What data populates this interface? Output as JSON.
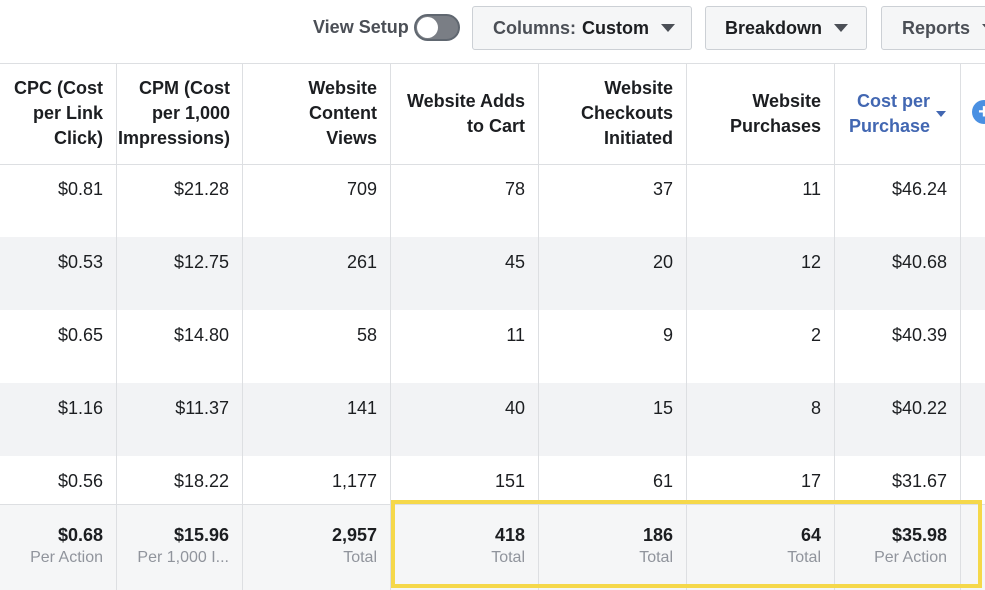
{
  "toolbar": {
    "view_setup_label": "View Setup",
    "columns_label": "Columns:",
    "columns_value": "Custom",
    "breakdown_label": "Breakdown",
    "reports_label": "Reports"
  },
  "table": {
    "headers": [
      "CPC (Cost\nper Link\nClick)",
      "CPM (Cost\nper 1,000\nImpressions)",
      "Website\nContent\nViews",
      "Website Adds\nto Cart",
      "Website\nCheckouts\nInitiated",
      "Website\nPurchases",
      "Cost per\nPurchase"
    ],
    "rows": [
      [
        "$0.81",
        "$21.28",
        "709",
        "78",
        "37",
        "11",
        "$46.24"
      ],
      [
        "$0.53",
        "$12.75",
        "261",
        "45",
        "20",
        "12",
        "$40.68"
      ],
      [
        "$0.65",
        "$14.80",
        "58",
        "11",
        "9",
        "2",
        "$40.39"
      ],
      [
        "$1.16",
        "$11.37",
        "141",
        "40",
        "15",
        "8",
        "$40.22"
      ],
      [
        "$0.56",
        "$18.22",
        "1,177",
        "151",
        "61",
        "17",
        "$31.67"
      ]
    ],
    "totals": [
      {
        "value": "$0.68",
        "label": "Per Action"
      },
      {
        "value": "$15.96",
        "label": "Per 1,000 I..."
      },
      {
        "value": "2,957",
        "label": "Total"
      },
      {
        "value": "418",
        "label": "Total"
      },
      {
        "value": "186",
        "label": "Total"
      },
      {
        "value": "64",
        "label": "Total"
      },
      {
        "value": "$35.98",
        "label": "Per Action"
      }
    ]
  },
  "colors": {
    "accent": "#4267b2",
    "highlight": "#f5d84a",
    "row_alt": "#f2f3f5"
  }
}
